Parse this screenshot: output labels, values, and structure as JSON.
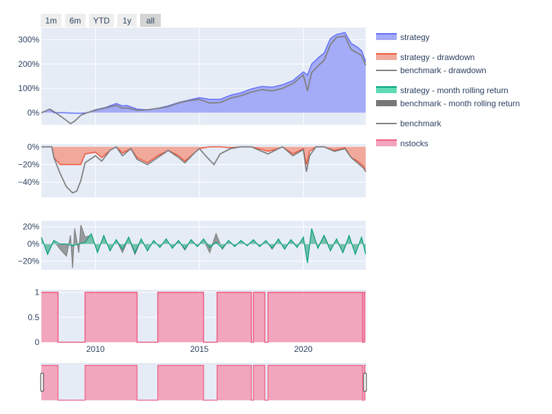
{
  "range_selector": {
    "buttons": [
      "1m",
      "6m",
      "YTD",
      "1y",
      "all"
    ],
    "active": "all"
  },
  "colors": {
    "strategy": "#636efa",
    "strategy_fill": "#a4abf7",
    "drawdown_strategy": "#ef553b",
    "drawdown_fill": "#f1a99b",
    "benchmark": "#7f7f7f",
    "rolling_strategy": "#00a07a",
    "rolling_fill": "#5fdcb5",
    "rolling_bench_fill": "#777777",
    "nstocks": "#ef5b82",
    "nstocks_fill": "#f2a6bd",
    "plot_bg": "#e5ecf6"
  },
  "chart_data": [
    {
      "type": "area",
      "x_range": [
        2007.4,
        2023.0
      ],
      "yticks": [
        "0%",
        "100%",
        "200%",
        "300%"
      ],
      "ylim": [
        -0.5,
        3.5
      ],
      "series": [
        {
          "name": "strategy",
          "x": [
            2007.4,
            2007.8,
            2008.0,
            2008.5,
            2009.0,
            2009.3,
            2009.6,
            2010.0,
            2010.5,
            2011.0,
            2011.3,
            2011.5,
            2012.0,
            2012.5,
            2013.0,
            2013.5,
            2014.0,
            2014.5,
            2015.0,
            2015.5,
            2016.0,
            2016.5,
            2017.0,
            2017.5,
            2018.0,
            2018.5,
            2019.0,
            2019.5,
            2020.0,
            2020.2,
            2020.4,
            2020.8,
            2021.0,
            2021.3,
            2021.6,
            2022.0,
            2022.3,
            2022.6,
            2022.8,
            2023.0
          ],
          "y": [
            0.0,
            0.15,
            0.0,
            0.0,
            -0.02,
            -0.02,
            0.0,
            0.12,
            0.22,
            0.38,
            0.28,
            0.3,
            0.15,
            0.12,
            0.18,
            0.28,
            0.42,
            0.52,
            0.62,
            0.55,
            0.55,
            0.72,
            0.82,
            0.98,
            1.08,
            1.05,
            1.15,
            1.32,
            1.68,
            1.55,
            2.0,
            2.32,
            2.45,
            3.05,
            3.22,
            3.3,
            2.85,
            2.7,
            2.55,
            2.1
          ]
        },
        {
          "name": "benchmark",
          "x": [
            2007.4,
            2007.8,
            2008.0,
            2008.5,
            2008.8,
            2009.0,
            2009.3,
            2009.6,
            2010.0,
            2010.5,
            2011.0,
            2011.3,
            2011.5,
            2012.0,
            2012.5,
            2013.0,
            2013.5,
            2014.0,
            2014.5,
            2015.0,
            2015.5,
            2016.0,
            2016.5,
            2017.0,
            2017.5,
            2018.0,
            2018.5,
            2019.0,
            2019.5,
            2020.0,
            2020.2,
            2020.4,
            2020.8,
            2021.0,
            2021.3,
            2021.6,
            2022.0,
            2022.3,
            2022.6,
            2022.8,
            2023.0
          ],
          "y": [
            0.0,
            0.15,
            0.05,
            -0.25,
            -0.45,
            -0.35,
            -0.1,
            0.0,
            0.1,
            0.2,
            0.3,
            0.18,
            0.2,
            0.1,
            0.12,
            0.18,
            0.25,
            0.4,
            0.5,
            0.55,
            0.4,
            0.42,
            0.6,
            0.7,
            0.85,
            0.95,
            0.9,
            1.0,
            1.2,
            1.55,
            0.9,
            1.65,
            2.0,
            2.15,
            2.8,
            3.1,
            3.15,
            2.6,
            2.45,
            2.35,
            1.95
          ]
        }
      ]
    },
    {
      "type": "area",
      "x_range": [
        2007.4,
        2023.0
      ],
      "yticks": [
        "0%",
        "−20%",
        "−40%"
      ],
      "ylim": [
        -0.57,
        0.03
      ],
      "series": [
        {
          "name": "strategy - drawdown",
          "x": [
            2007.4,
            2007.9,
            2008.0,
            2008.3,
            2008.8,
            2009.3,
            2009.5,
            2010.0,
            2010.3,
            2010.7,
            2011.0,
            2011.3,
            2011.7,
            2012.0,
            2012.5,
            2013.0,
            2013.5,
            2014.0,
            2014.3,
            2014.8,
            2015.0,
            2015.5,
            2015.8,
            2016.0,
            2016.5,
            2017.0,
            2017.5,
            2018.0,
            2018.3,
            2018.8,
            2019.0,
            2019.5,
            2020.0,
            2020.15,
            2020.3,
            2020.6,
            2021.0,
            2021.5,
            2022.0,
            2022.3,
            2022.6,
            2022.9,
            2023.0
          ],
          "y": [
            0.0,
            0.0,
            -0.12,
            -0.2,
            -0.2,
            -0.2,
            -0.08,
            -0.06,
            -0.12,
            -0.04,
            0.0,
            -0.07,
            -0.02,
            -0.12,
            -0.18,
            -0.1,
            -0.04,
            -0.1,
            -0.16,
            -0.06,
            -0.02,
            0.0,
            0.0,
            0.0,
            -0.01,
            0.0,
            0.0,
            -0.03,
            -0.05,
            -0.02,
            0.0,
            -0.08,
            -0.02,
            -0.2,
            -0.05,
            0.0,
            0.0,
            -0.04,
            -0.01,
            -0.12,
            -0.16,
            -0.22,
            -0.28
          ]
        },
        {
          "name": "benchmark - drawdown",
          "x": [
            2007.4,
            2007.9,
            2008.0,
            2008.3,
            2008.6,
            2008.9,
            2009.1,
            2009.3,
            2009.5,
            2010.0,
            2010.3,
            2010.7,
            2011.0,
            2011.3,
            2011.7,
            2012.0,
            2012.5,
            2013.0,
            2013.5,
            2014.0,
            2014.3,
            2014.8,
            2015.0,
            2015.3,
            2015.7,
            2016.0,
            2016.5,
            2017.0,
            2017.5,
            2018.0,
            2018.3,
            2018.8,
            2019.0,
            2019.5,
            2020.0,
            2020.15,
            2020.3,
            2020.6,
            2021.0,
            2021.5,
            2022.0,
            2022.3,
            2022.6,
            2022.9,
            2023.0
          ],
          "y": [
            0.0,
            0.0,
            -0.12,
            -0.3,
            -0.45,
            -0.52,
            -0.5,
            -0.38,
            -0.18,
            -0.1,
            -0.16,
            -0.04,
            0.0,
            -0.1,
            -0.02,
            -0.14,
            -0.2,
            -0.12,
            -0.04,
            -0.12,
            -0.18,
            -0.06,
            -0.02,
            -0.1,
            -0.2,
            -0.08,
            -0.02,
            0.0,
            0.0,
            -0.05,
            -0.08,
            -0.02,
            0.0,
            -0.1,
            -0.03,
            -0.28,
            -0.1,
            0.0,
            0.0,
            -0.05,
            -0.02,
            -0.12,
            -0.18,
            -0.24,
            -0.28
          ]
        }
      ]
    },
    {
      "type": "area",
      "x_range": [
        2007.4,
        2023.0
      ],
      "yticks": [
        "20%",
        "0%",
        "−20%"
      ],
      "ylim": [
        -0.3,
        0.27
      ],
      "series": [
        {
          "name": "strategy - month rolling return",
          "x": [
            2007.4,
            2007.7,
            2008.0,
            2008.3,
            2008.6,
            2008.9,
            2009.2,
            2009.5,
            2009.8,
            2010.1,
            2010.4,
            2010.7,
            2011.0,
            2011.3,
            2011.6,
            2011.9,
            2012.2,
            2012.5,
            2012.8,
            2013.1,
            2013.4,
            2013.7,
            2014.0,
            2014.3,
            2014.6,
            2014.9,
            2015.2,
            2015.5,
            2015.8,
            2016.1,
            2016.4,
            2016.7,
            2017.0,
            2017.3,
            2017.6,
            2017.9,
            2018.2,
            2018.5,
            2018.8,
            2019.1,
            2019.4,
            2019.7,
            2020.0,
            2020.2,
            2020.4,
            2020.7,
            2021.0,
            2021.3,
            2021.6,
            2021.9,
            2022.2,
            2022.5,
            2022.8,
            2023.0
          ],
          "y": [
            0.08,
            -0.12,
            0.04,
            0.0,
            0.0,
            -0.02,
            0.0,
            0.02,
            0.12,
            -0.1,
            0.1,
            -0.08,
            0.05,
            -0.06,
            0.08,
            -0.1,
            0.06,
            -0.08,
            0.04,
            -0.04,
            0.06,
            -0.05,
            0.04,
            -0.06,
            0.05,
            -0.03,
            0.06,
            -0.04,
            0.02,
            -0.05,
            0.04,
            -0.03,
            0.04,
            -0.02,
            0.05,
            -0.03,
            0.04,
            -0.05,
            0.06,
            -0.06,
            0.05,
            -0.04,
            0.08,
            -0.22,
            0.18,
            -0.05,
            0.1,
            -0.08,
            0.06,
            -0.1,
            0.1,
            -0.12,
            0.08,
            -0.12
          ]
        },
        {
          "name": "benchmark - month rolling return",
          "x": [
            2007.4,
            2007.7,
            2008.0,
            2008.3,
            2008.6,
            2008.8,
            2008.9,
            2009.0,
            2009.2,
            2009.3,
            2009.5,
            2009.8,
            2010.1,
            2010.4,
            2010.7,
            2011.0,
            2011.3,
            2011.6,
            2011.9,
            2012.2,
            2012.5,
            2012.8,
            2013.1,
            2013.4,
            2013.7,
            2014.0,
            2014.3,
            2014.6,
            2014.9,
            2015.2,
            2015.5,
            2015.8,
            2016.1,
            2016.4,
            2016.7,
            2017.0,
            2017.3,
            2017.6,
            2017.9,
            2018.2,
            2018.5,
            2018.8,
            2019.1,
            2019.4,
            2019.7,
            2020.0,
            2020.2,
            2020.4,
            2020.7,
            2021.0,
            2021.3,
            2021.6,
            2021.9,
            2022.2,
            2022.5,
            2022.8,
            2023.0
          ],
          "y": [
            0.07,
            -0.1,
            0.04,
            -0.06,
            -0.14,
            0.1,
            -0.28,
            0.18,
            -0.1,
            0.22,
            0.08,
            0.1,
            -0.08,
            0.09,
            -0.07,
            0.05,
            -0.1,
            0.07,
            -0.12,
            0.05,
            -0.07,
            0.04,
            -0.04,
            0.05,
            -0.04,
            0.04,
            -0.07,
            0.05,
            -0.03,
            0.05,
            -0.1,
            0.12,
            -0.06,
            0.04,
            -0.03,
            0.04,
            -0.02,
            0.04,
            -0.03,
            0.04,
            -0.06,
            0.05,
            -0.06,
            0.05,
            -0.03,
            0.07,
            -0.2,
            0.16,
            -0.04,
            0.1,
            -0.06,
            0.05,
            -0.1,
            0.08,
            -0.1,
            0.07,
            -0.1
          ]
        }
      ]
    },
    {
      "type": "area",
      "name": "nstocks",
      "x_range": [
        2007.4,
        2023.0
      ],
      "yticks": [
        "1",
        "0.5",
        "0"
      ],
      "ylim": [
        0,
        1.05
      ],
      "xticks": [
        "2010",
        "2015",
        "2020"
      ],
      "x": [
        2007.4,
        2008.2,
        2008.2,
        2009.5,
        2009.5,
        2012.0,
        2012.0,
        2013.0,
        2013.0,
        2015.2,
        2015.2,
        2015.85,
        2015.85,
        2017.5,
        2017.5,
        2017.6,
        2017.6,
        2018.15,
        2018.15,
        2018.3,
        2018.3,
        2022.85,
        2022.85,
        2022.92,
        2022.92,
        2023.0
      ],
      "y": [
        1,
        1,
        0,
        0,
        1,
        1,
        0,
        0,
        1,
        1,
        0,
        0,
        1,
        1,
        0,
        0,
        1,
        1,
        0,
        0,
        1,
        1,
        0,
        0,
        1,
        1
      ]
    }
  ]
}
